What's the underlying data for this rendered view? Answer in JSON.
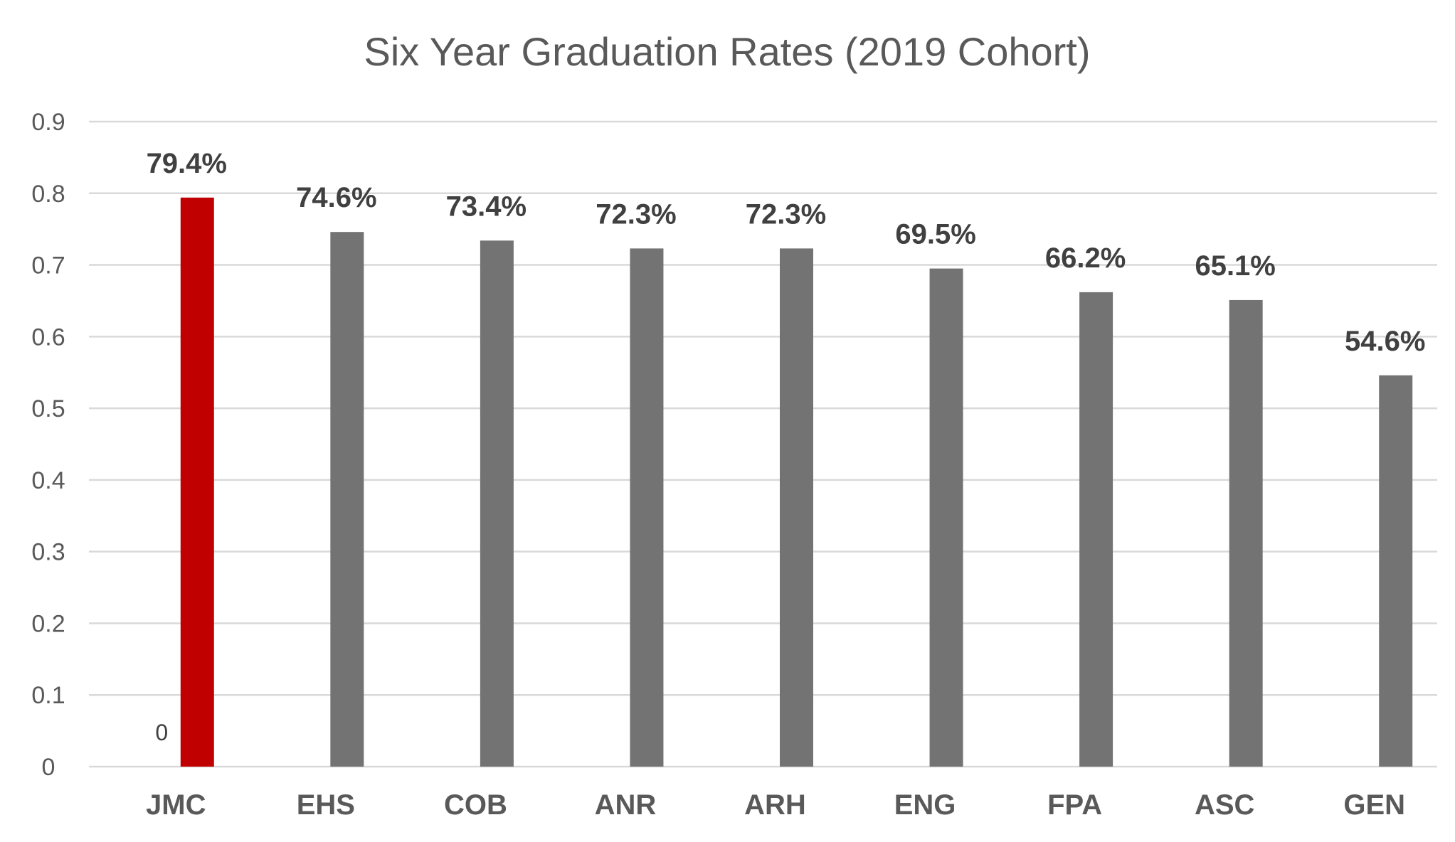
{
  "chart_data": {
    "type": "bar",
    "title": "Six Year Graduation Rates (2019 Cohort)",
    "xlabel": "",
    "ylabel": "",
    "categories": [
      "JMC",
      "EHS",
      "COB",
      "ANR",
      "ARH",
      "ENG",
      "FPA",
      "ASC",
      "GEN"
    ],
    "values": [
      0.794,
      0.746,
      0.734,
      0.723,
      0.723,
      0.695,
      0.662,
      0.651,
      0.546
    ],
    "data_labels": [
      "79.4%",
      "74.6%",
      "73.4%",
      "72.3%",
      "72.3%",
      "69.5%",
      "66.2%",
      "65.1%",
      "54.6%"
    ],
    "y_ticks": [
      "0",
      "0.1",
      "0.2",
      "0.3",
      "0.4",
      "0.5",
      "0.6",
      "0.7",
      "0.8",
      "0.9"
    ],
    "ylim": [
      0,
      0.9
    ],
    "grid": true,
    "legend": "none",
    "extra_label": "0",
    "highlight_category": "JMC",
    "colors": {
      "highlight": "#c00000",
      "bar": "#737373",
      "grid": "#d9d9d9",
      "title": "#595959",
      "data_label": "#404040",
      "axis_label": "#595959"
    }
  }
}
